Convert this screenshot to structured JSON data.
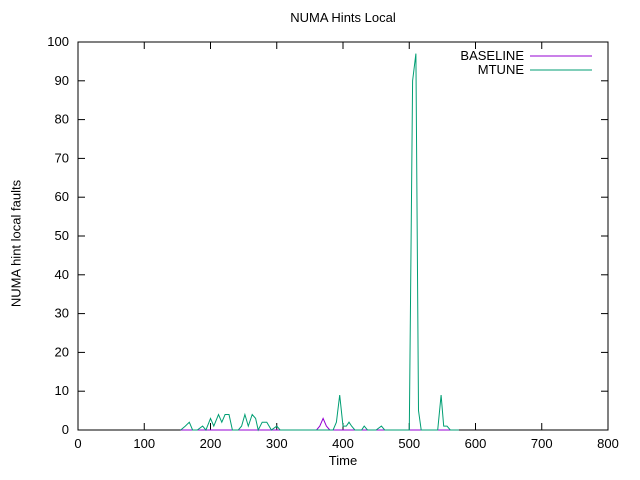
{
  "title": "NUMA Hints Local",
  "chart_data": {
    "type": "line",
    "title": "NUMA Hints Local",
    "xlabel": "Time",
    "ylabel": "NUMA hint local faults",
    "xlim": [
      0,
      800
    ],
    "ylim": [
      0,
      100
    ],
    "xticks": [
      0,
      100,
      200,
      300,
      400,
      500,
      600,
      700,
      800
    ],
    "yticks": [
      0,
      10,
      20,
      30,
      40,
      50,
      60,
      70,
      80,
      90,
      100
    ],
    "grid": false,
    "legend_position": "top-right-inside",
    "series": [
      {
        "name": "BASELINE",
        "color": "#9400d3",
        "points": [
          [
            155,
            0
          ],
          [
            175,
            0
          ],
          [
            195,
            0
          ],
          [
            215,
            0
          ],
          [
            235,
            0
          ],
          [
            255,
            0
          ],
          [
            275,
            0
          ],
          [
            295,
            0
          ],
          [
            315,
            0
          ],
          [
            335,
            0
          ],
          [
            352,
            0
          ],
          [
            360,
            0
          ],
          [
            365,
            1
          ],
          [
            370,
            3
          ],
          [
            375,
            1
          ],
          [
            380,
            0
          ],
          [
            400,
            0
          ],
          [
            420,
            0
          ],
          [
            440,
            0
          ],
          [
            460,
            0
          ],
          [
            480,
            0
          ],
          [
            500,
            0
          ],
          [
            520,
            0
          ],
          [
            540,
            0
          ],
          [
            560,
            0
          ],
          [
            575,
            0
          ]
        ]
      },
      {
        "name": "MTUNE",
        "color": "#009e73",
        "points": [
          [
            155,
            0
          ],
          [
            162,
            1
          ],
          [
            168,
            2
          ],
          [
            173,
            0
          ],
          [
            180,
            0
          ],
          [
            188,
            1
          ],
          [
            193,
            0
          ],
          [
            200,
            3
          ],
          [
            205,
            1
          ],
          [
            212,
            4
          ],
          [
            217,
            2
          ],
          [
            222,
            4
          ],
          [
            228,
            4
          ],
          [
            233,
            0
          ],
          [
            242,
            0
          ],
          [
            247,
            1
          ],
          [
            252,
            4
          ],
          [
            257,
            1
          ],
          [
            263,
            4
          ],
          [
            268,
            3
          ],
          [
            272,
            0
          ],
          [
            278,
            2
          ],
          [
            285,
            2
          ],
          [
            292,
            0
          ],
          [
            300,
            1
          ],
          [
            305,
            0
          ],
          [
            320,
            0
          ],
          [
            340,
            0
          ],
          [
            360,
            0
          ],
          [
            375,
            0
          ],
          [
            385,
            0
          ],
          [
            390,
            2
          ],
          [
            395,
            9
          ],
          [
            400,
            1
          ],
          [
            405,
            1
          ],
          [
            409,
            2
          ],
          [
            413,
            1
          ],
          [
            418,
            0
          ],
          [
            428,
            0
          ],
          [
            432,
            1
          ],
          [
            437,
            0
          ],
          [
            450,
            0
          ],
          [
            458,
            1
          ],
          [
            463,
            0
          ],
          [
            475,
            0
          ],
          [
            490,
            0
          ],
          [
            500,
            0
          ],
          [
            505,
            90
          ],
          [
            510,
            97
          ],
          [
            514,
            5
          ],
          [
            518,
            0
          ],
          [
            530,
            0
          ],
          [
            543,
            0
          ],
          [
            548,
            9
          ],
          [
            552,
            1
          ],
          [
            557,
            1
          ],
          [
            562,
            0
          ],
          [
            575,
            0
          ]
        ]
      }
    ]
  }
}
